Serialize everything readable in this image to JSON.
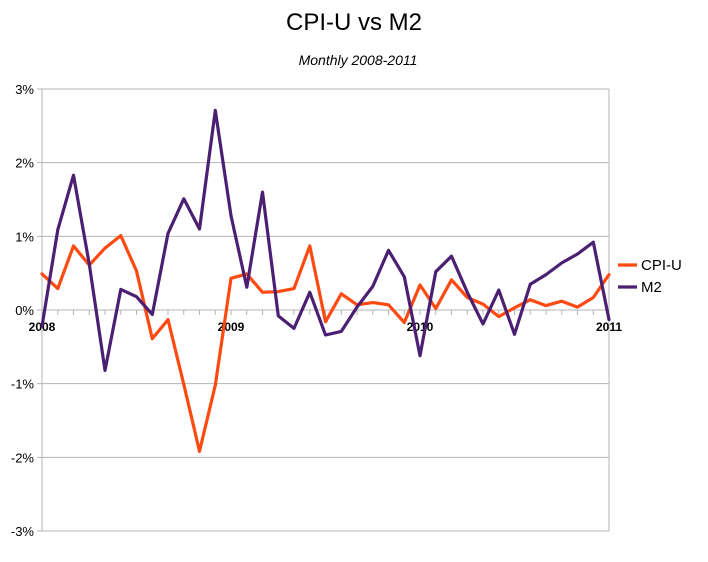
{
  "chart_data": {
    "type": "line",
    "title": "CPI-U vs M2",
    "subtitle": "Monthly 2008-2011",
    "xlabel": "",
    "ylabel": "",
    "ylim": [
      -3,
      3
    ],
    "y_ticks": [
      "3%",
      "2%",
      "1%",
      "0%",
      "-1%",
      "-2%",
      "-3%"
    ],
    "x_ticks": [
      {
        "label": "2008",
        "month": 0
      },
      {
        "label": "2009",
        "month": 12
      },
      {
        "label": "2010",
        "month": 24
      },
      {
        "label": "2011",
        "month": 36
      }
    ],
    "x_range": [
      0,
      36
    ],
    "grid": "horizontal",
    "legend": "right",
    "series": [
      {
        "name": "CPI-U",
        "color": "#ff4a12",
        "values": [
          0.49,
          0.29,
          0.87,
          0.61,
          0.84,
          1.01,
          0.53,
          -0.39,
          -0.13,
          -1.01,
          -1.92,
          -1.02,
          0.43,
          0.49,
          0.24,
          0.25,
          0.29,
          0.87,
          -0.16,
          0.22,
          0.07,
          0.1,
          0.07,
          -0.17,
          0.34,
          0.02,
          0.41,
          0.17,
          0.08,
          -0.09,
          0.03,
          0.14,
          0.06,
          0.12,
          0.04,
          0.17,
          0.48
        ]
      },
      {
        "name": "M2",
        "color": "#4b2072",
        "values": [
          -0.22,
          1.09,
          1.83,
          0.62,
          -0.82,
          0.28,
          0.18,
          -0.06,
          1.04,
          1.51,
          1.1,
          2.71,
          1.28,
          0.31,
          1.6,
          -0.08,
          -0.25,
          0.24,
          -0.34,
          -0.29,
          0.04,
          0.32,
          0.81,
          0.45,
          -0.62,
          0.52,
          0.73,
          0.24,
          -0.19,
          0.27,
          -0.33,
          0.35,
          0.48,
          0.64,
          0.76,
          0.92,
          -0.13
        ]
      }
    ]
  }
}
